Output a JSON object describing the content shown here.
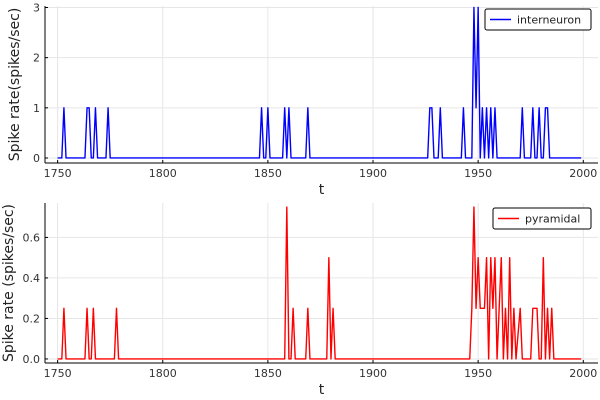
{
  "chart_data": [
    {
      "type": "line",
      "xlabel": "t",
      "ylabel": "Spike rate(spikes/sec)",
      "xlim": [
        1744,
        2007
      ],
      "ylim": [
        -0.1,
        3.03
      ],
      "xticks": [
        1750,
        1800,
        1850,
        1900,
        1950,
        2000
      ],
      "yticks": [
        0,
        1,
        2,
        3
      ],
      "grid": true,
      "legend_position": "top-right",
      "series": [
        {
          "name": "interneuron",
          "color": "#0000ff",
          "points": [
            [
              1750,
              0
            ],
            [
              1752,
              0
            ],
            [
              1753,
              1
            ],
            [
              1754,
              0
            ],
            [
              1763,
              0
            ],
            [
              1764,
              1
            ],
            [
              1765,
              1
            ],
            [
              1766,
              0
            ],
            [
              1767,
              0
            ],
            [
              1768,
              1
            ],
            [
              1769,
              0
            ],
            [
              1773,
              0
            ],
            [
              1774,
              1
            ],
            [
              1775,
              0
            ],
            [
              1846,
              0
            ],
            [
              1847,
              1
            ],
            [
              1848,
              0
            ],
            [
              1849,
              0
            ],
            [
              1850,
              1
            ],
            [
              1851,
              0
            ],
            [
              1857,
              0
            ],
            [
              1858,
              1
            ],
            [
              1859,
              0
            ],
            [
              1860,
              1
            ],
            [
              1861,
              0
            ],
            [
              1868,
              0
            ],
            [
              1869,
              1
            ],
            [
              1870,
              0
            ],
            [
              1926,
              0
            ],
            [
              1927,
              1
            ],
            [
              1928,
              1
            ],
            [
              1929,
              0
            ],
            [
              1931,
              0
            ],
            [
              1932,
              1
            ],
            [
              1933,
              0
            ],
            [
              1942,
              0
            ],
            [
              1943,
              1
            ],
            [
              1944,
              0
            ],
            [
              1947,
              0
            ],
            [
              1948,
              3
            ],
            [
              1949,
              1
            ],
            [
              1950,
              3
            ],
            [
              1951,
              0
            ],
            [
              1952,
              1
            ],
            [
              1953,
              0
            ],
            [
              1954,
              1
            ],
            [
              1955,
              0
            ],
            [
              1956,
              1
            ],
            [
              1957,
              0
            ],
            [
              1958,
              1
            ],
            [
              1959,
              0
            ],
            [
              1970,
              0
            ],
            [
              1971,
              1
            ],
            [
              1972,
              0
            ],
            [
              1975,
              0
            ],
            [
              1976,
              1
            ],
            [
              1977,
              0
            ],
            [
              1978,
              0
            ],
            [
              1979,
              1
            ],
            [
              1980,
              0
            ],
            [
              1981,
              0
            ],
            [
              1982,
              1
            ],
            [
              1983,
              1
            ],
            [
              1984,
              0
            ],
            [
              1999,
              0
            ]
          ]
        }
      ]
    },
    {
      "type": "line",
      "xlabel": "t",
      "ylabel": "Spike rate (spikes/sec)",
      "xlim": [
        1744,
        2007
      ],
      "ylim": [
        -0.02,
        0.77
      ],
      "xticks": [
        1750,
        1800,
        1850,
        1900,
        1950,
        2000
      ],
      "yticks": [
        0.0,
        0.2,
        0.4,
        0.6
      ],
      "grid": true,
      "legend_position": "top-right",
      "series": [
        {
          "name": "pyramidal",
          "color": "#ff0000",
          "points": [
            [
              1750,
              0
            ],
            [
              1752,
              0
            ],
            [
              1753,
              0.25
            ],
            [
              1754,
              0
            ],
            [
              1763,
              0
            ],
            [
              1764,
              0.25
            ],
            [
              1765,
              0
            ],
            [
              1766,
              0
            ],
            [
              1767,
              0.25
            ],
            [
              1768,
              0
            ],
            [
              1777,
              0
            ],
            [
              1778,
              0.25
            ],
            [
              1779,
              0
            ],
            [
              1858,
              0
            ],
            [
              1859,
              0.75
            ],
            [
              1860,
              0
            ],
            [
              1861,
              0
            ],
            [
              1862,
              0.25
            ],
            [
              1863,
              0
            ],
            [
              1868,
              0
            ],
            [
              1869,
              0.25
            ],
            [
              1870,
              0
            ],
            [
              1878,
              0
            ],
            [
              1879,
              0.5
            ],
            [
              1880,
              0
            ],
            [
              1881,
              0.25
            ],
            [
              1882,
              0
            ],
            [
              1946,
              0
            ],
            [
              1947,
              0.25
            ],
            [
              1948,
              0.75
            ],
            [
              1949,
              0.25
            ],
            [
              1950,
              0.5
            ],
            [
              1951,
              0.25
            ],
            [
              1953,
              0.25
            ],
            [
              1954,
              0.5
            ],
            [
              1955,
              0
            ],
            [
              1956,
              0.5
            ],
            [
              1957,
              0.25
            ],
            [
              1958,
              0.5
            ],
            [
              1959,
              0
            ],
            [
              1960,
              0.25
            ],
            [
              1961,
              0.5
            ],
            [
              1962,
              0
            ],
            [
              1963,
              0.25
            ],
            [
              1964,
              0
            ],
            [
              1965,
              0.5
            ],
            [
              1966,
              0
            ],
            [
              1967,
              0.25
            ],
            [
              1968,
              0
            ],
            [
              1970,
              0.25
            ],
            [
              1971,
              0
            ],
            [
              1975,
              0
            ],
            [
              1976,
              0.25
            ],
            [
              1978,
              0.25
            ],
            [
              1979,
              0
            ],
            [
              1980,
              0
            ],
            [
              1981,
              0.5
            ],
            [
              1982,
              0
            ],
            [
              1983,
              0.25
            ],
            [
              1984,
              0
            ],
            [
              1985,
              0.25
            ],
            [
              1986,
              0
            ],
            [
              1999,
              0
            ]
          ]
        }
      ]
    }
  ]
}
